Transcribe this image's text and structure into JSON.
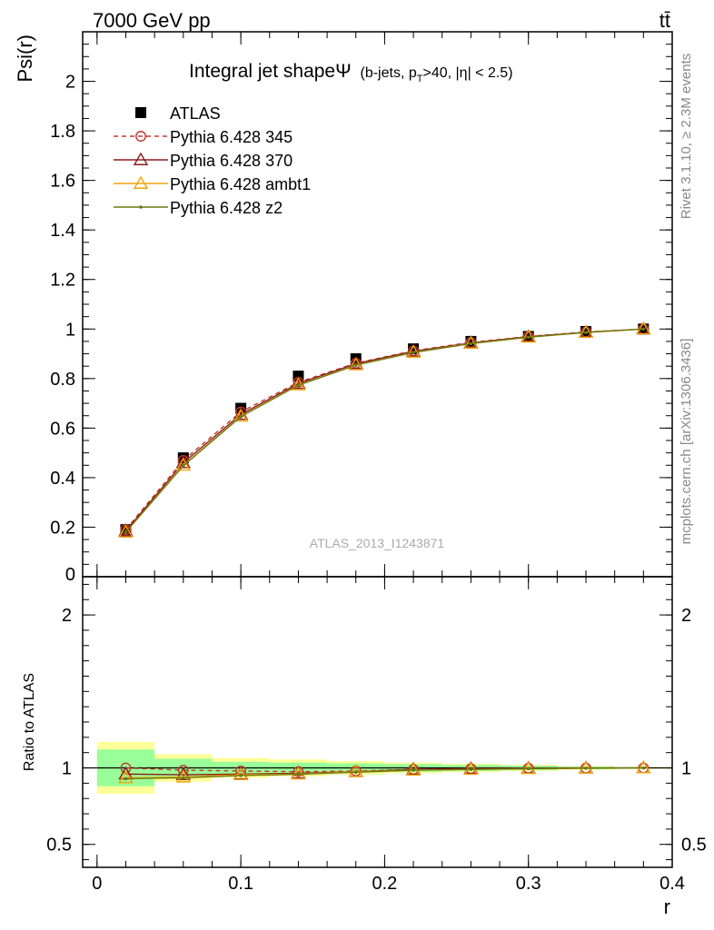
{
  "header": {
    "left_label": "7000 GeV pp",
    "right_label": "tt̄"
  },
  "side_labels": {
    "rivet": "Rivet 3.1.10, ≥ 2.3M events",
    "source": "mcplots.cern.ch [arXiv:1306.3436]"
  },
  "chart_data": {
    "type": "line",
    "title": "Integral jet shapeΨ",
    "subtitle": "(b-jets, p_T>40, |η| < 2.5)",
    "subtitle_parts": {
      "a": "(b-jets, p",
      "sub": "T",
      "b": ">40, |η| < 2.5)"
    },
    "watermark": "ATLAS_2013_I1243871",
    "ylabel": "Psi(r)",
    "xlabel": "r",
    "ratio_ylabel": "Ratio to ATLAS",
    "xlim": [
      -0.01,
      0.4
    ],
    "ylim": [
      0,
      2.2
    ],
    "ratio_ylim": [
      0.35,
      2.25
    ],
    "x_ticks": [
      {
        "value": 0,
        "label": "0"
      },
      {
        "value": 0.1,
        "label": "0.1"
      },
      {
        "value": 0.2,
        "label": "0.2"
      },
      {
        "value": 0.3,
        "label": "0.3"
      },
      {
        "value": 0.4,
        "label": "0.4"
      }
    ],
    "y_ticks": [
      {
        "value": 0,
        "label": "0"
      },
      {
        "value": 0.2,
        "label": "0.2"
      },
      {
        "value": 0.4,
        "label": "0.4"
      },
      {
        "value": 0.6,
        "label": "0.6"
      },
      {
        "value": 0.8,
        "label": "0.8"
      },
      {
        "value": 1.0,
        "label": "1"
      },
      {
        "value": 1.2,
        "label": "1.2"
      },
      {
        "value": 1.4,
        "label": "1.4"
      },
      {
        "value": 1.6,
        "label": "1.6"
      },
      {
        "value": 1.8,
        "label": "1.8"
      },
      {
        "value": 2.0,
        "label": "2"
      }
    ],
    "ratio_ticks": [
      {
        "value": 0.5,
        "label": "0.5"
      },
      {
        "value": 1,
        "label": "1"
      },
      {
        "value": 2,
        "label": "2"
      }
    ],
    "x": [
      0.02,
      0.06,
      0.1,
      0.14,
      0.18,
      0.22,
      0.26,
      0.3,
      0.34,
      0.38
    ],
    "data": {
      "name": "ATLAS",
      "values": [
        0.19,
        0.48,
        0.68,
        0.81,
        0.88,
        0.92,
        0.95,
        0.97,
        0.99,
        1.0
      ],
      "band_inner": [
        0.12,
        0.06,
        0.04,
        0.035,
        0.03,
        0.025,
        0.02,
        0.015,
        0.008,
        0.004
      ],
      "band_outer": [
        0.17,
        0.09,
        0.065,
        0.055,
        0.045,
        0.035,
        0.028,
        0.02,
        0.012,
        0.006
      ],
      "bin_edges": [
        0.0,
        0.04,
        0.08,
        0.12,
        0.16,
        0.2,
        0.24,
        0.28,
        0.32,
        0.36,
        0.4
      ]
    },
    "series": [
      {
        "name": "Pythia 6.428 345",
        "color": "#c0392b",
        "marker": "circle",
        "dash": "dashed",
        "values": [
          0.19,
          0.47,
          0.665,
          0.785,
          0.862,
          0.912,
          0.946,
          0.97,
          0.988,
          1.0
        ],
        "ratio": [
          1.0,
          0.985,
          0.98,
          0.975,
          0.98,
          0.99,
          0.995,
          0.998,
          0.999,
          1.0
        ]
      },
      {
        "name": "Pythia 6.428 370",
        "color": "#8b1a1a",
        "marker": "triangle",
        "dash": "solid",
        "values": [
          0.185,
          0.46,
          0.655,
          0.78,
          0.86,
          0.91,
          0.944,
          0.969,
          0.987,
          1.0
        ],
        "ratio": [
          0.96,
          0.955,
          0.96,
          0.965,
          0.975,
          0.99,
          0.995,
          0.998,
          0.999,
          1.0
        ]
      },
      {
        "name": "Pythia 6.428 ambt1",
        "color": "#f0a30a",
        "marker": "triangle",
        "dash": "solid",
        "values": [
          0.18,
          0.45,
          0.648,
          0.774,
          0.855,
          0.906,
          0.942,
          0.967,
          0.986,
          1.0
        ],
        "ratio": [
          0.935,
          0.94,
          0.955,
          0.96,
          0.975,
          0.985,
          0.99,
          0.995,
          0.998,
          1.0
        ]
      },
      {
        "name": "Pythia 6.428 z2",
        "color": "#6b7a10",
        "marker": "dot",
        "dash": "solid",
        "values": [
          0.18,
          0.448,
          0.646,
          0.773,
          0.854,
          0.905,
          0.941,
          0.967,
          0.986,
          1.0
        ],
        "ratio": [
          0.93,
          0.935,
          0.95,
          0.958,
          0.972,
          0.985,
          0.99,
          0.995,
          0.998,
          1.0
        ]
      }
    ],
    "colors": {
      "data": "#000000",
      "band_inner": "#99ff99",
      "band_outer": "#ffff99"
    }
  }
}
